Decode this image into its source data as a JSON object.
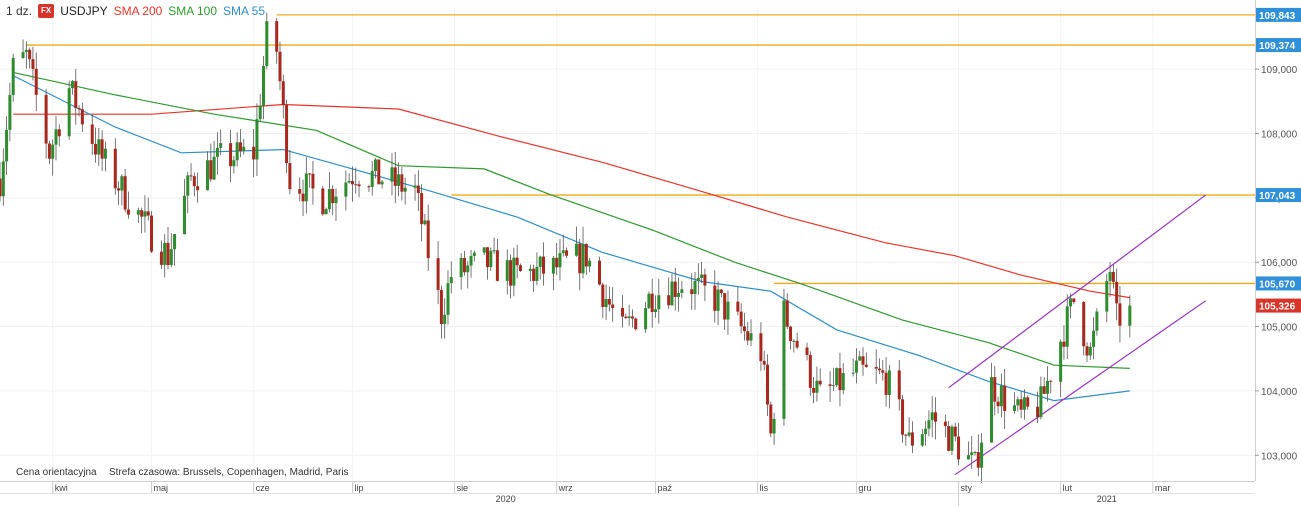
{
  "header": {
    "interval": "1 dz.",
    "badge": "FX",
    "symbol": "USDJPY",
    "indicators": [
      {
        "label": "SMA 200",
        "color": "#e8342c"
      },
      {
        "label": "SMA 100",
        "color": "#2f9a2f"
      },
      {
        "label": "SMA 55",
        "color": "#2f8fc8"
      }
    ]
  },
  "footer": {
    "price_note": "Cena orientacyjna",
    "timezone_note": "Strefa czasowa: Brussels, Copenhagen, Madrid, Paris"
  },
  "colors": {
    "up_candle": "#2e8b2e",
    "down_candle": "#a8281e",
    "level_line": "#f0a818",
    "channel": "#9a2fc8",
    "level_tag": "#2f8fd8",
    "last_price_tag": "#d8352a",
    "sma200": "#e8342c",
    "sma100": "#2f9a2f",
    "sma55": "#2f8fc8"
  },
  "chart_data": {
    "type": "candlestick",
    "symbol": "USDJPY",
    "ylim": [
      102.6,
      109.95
    ],
    "y_ticks": [
      "109,000",
      "108,000",
      "107,000",
      "106,000",
      "105,000",
      "104,000",
      "103,000"
    ],
    "x_month_labels": [
      "kwi",
      "maj",
      "cze",
      "lip",
      "sie",
      "wrz",
      "paź",
      "lis",
      "gru",
      "sty",
      "lut",
      "mar"
    ],
    "x_year_labels": [
      "2020",
      "2021"
    ],
    "level_tags": [
      "109,843",
      "109,374",
      "107,043",
      "105,670"
    ],
    "last_price_tag": "105,326",
    "levels": [
      {
        "label": "109,843",
        "value": 109.843,
        "from": "2020-06-08"
      },
      {
        "label": "109,374",
        "value": 109.374,
        "from": "2020-03-24"
      },
      {
        "label": "107,043",
        "value": 107.043,
        "from": "2020-07-31"
      },
      {
        "label": "105,670",
        "value": 105.67,
        "from": "2020-11-06"
      }
    ],
    "last_price": 105.326,
    "channel": {
      "upper": [
        [
          "2020-12-29",
          104.05
        ],
        [
          "2021-03-17",
          107.043
        ]
      ],
      "lower": [
        [
          "2020-12-31",
          102.7
        ],
        [
          "2021-03-17",
          105.4
        ]
      ]
    },
    "sma200": [
      [
        "2020-03-20",
        108.3
      ],
      [
        "2020-05-01",
        108.3
      ],
      [
        "2020-06-10",
        108.45
      ],
      [
        "2020-07-15",
        108.38
      ],
      [
        "2020-08-15",
        107.95
      ],
      [
        "2020-09-15",
        107.55
      ],
      [
        "2020-10-15",
        107.1
      ],
      [
        "2020-11-10",
        106.7
      ],
      [
        "2020-12-10",
        106.3
      ],
      [
        "2020-12-31",
        106.1
      ],
      [
        "2021-01-20",
        105.8
      ],
      [
        "2021-02-10",
        105.55
      ],
      [
        "2021-02-22",
        105.45
      ]
    ],
    "sma100": [
      [
        "2020-03-20",
        108.95
      ],
      [
        "2020-04-20",
        108.6
      ],
      [
        "2020-05-20",
        108.3
      ],
      [
        "2020-06-20",
        108.05
      ],
      [
        "2020-07-15",
        107.5
      ],
      [
        "2020-08-10",
        107.45
      ],
      [
        "2020-08-30",
        107.05
      ],
      [
        "2020-09-30",
        106.5
      ],
      [
        "2020-10-25",
        106.0
      ],
      [
        "2020-11-15",
        105.65
      ],
      [
        "2020-12-15",
        105.1
      ],
      [
        "2021-01-10",
        104.75
      ],
      [
        "2021-01-30",
        104.4
      ],
      [
        "2021-02-22",
        104.35
      ]
    ],
    "sma55": [
      [
        "2020-03-20",
        108.9
      ],
      [
        "2020-04-20",
        108.1
      ],
      [
        "2020-05-10",
        107.7
      ],
      [
        "2020-06-10",
        107.75
      ],
      [
        "2020-07-01",
        107.45
      ],
      [
        "2020-07-25",
        107.1
      ],
      [
        "2020-08-20",
        106.7
      ],
      [
        "2020-09-15",
        106.15
      ],
      [
        "2020-10-15",
        105.7
      ],
      [
        "2020-11-05",
        105.55
      ],
      [
        "2020-11-25",
        104.95
      ],
      [
        "2020-12-20",
        104.55
      ],
      [
        "2021-01-10",
        104.15
      ],
      [
        "2021-01-30",
        103.85
      ],
      [
        "2021-02-22",
        104.0
      ]
    ],
    "waypoints": [
      [
        "2020-03-16",
        107.3
      ],
      [
        "2020-03-20",
        109.0
      ],
      [
        "2020-03-24",
        109.2
      ],
      [
        "2020-03-31",
        107.7
      ],
      [
        "2020-04-06",
        108.7
      ],
      [
        "2020-04-16",
        107.6
      ],
      [
        "2020-04-30",
        106.5
      ],
      [
        "2020-05-06",
        106.1
      ],
      [
        "2020-05-13",
        107.3
      ],
      [
        "2020-05-22",
        107.6
      ],
      [
        "2020-06-01",
        107.7
      ],
      [
        "2020-06-05",
        109.5
      ],
      [
        "2020-06-08",
        109.3
      ],
      [
        "2020-06-12",
        107.3
      ],
      [
        "2020-06-22",
        107.0
      ],
      [
        "2020-07-02",
        107.4
      ],
      [
        "2020-07-10",
        107.3
      ],
      [
        "2020-07-20",
        107.1
      ],
      [
        "2020-07-28",
        105.2
      ],
      [
        "2020-07-31",
        105.8
      ],
      [
        "2020-08-10",
        106.0
      ],
      [
        "2020-08-20",
        105.8
      ],
      [
        "2020-08-31",
        105.9
      ],
      [
        "2020-09-10",
        106.1
      ],
      [
        "2020-09-21",
        104.9
      ],
      [
        "2020-09-30",
        105.5
      ],
      [
        "2020-10-10",
        105.7
      ],
      [
        "2020-10-20",
        105.4
      ],
      [
        "2020-11-02",
        104.6
      ],
      [
        "2020-11-05",
        103.3
      ],
      [
        "2020-11-09",
        105.2
      ],
      [
        "2020-11-20",
        103.9
      ],
      [
        "2020-12-01",
        104.3
      ],
      [
        "2020-12-10",
        104.2
      ],
      [
        "2020-12-17",
        103.2
      ],
      [
        "2020-12-24",
        103.6
      ],
      [
        "2020-12-31",
        103.2
      ],
      [
        "2021-01-06",
        102.8
      ],
      [
        "2021-01-11",
        104.1
      ],
      [
        "2021-01-20",
        103.6
      ],
      [
        "2021-01-26",
        103.8
      ],
      [
        "2021-02-01",
        104.8
      ],
      [
        "2021-02-05",
        105.4
      ],
      [
        "2021-02-10",
        104.6
      ],
      [
        "2021-02-16",
        105.9
      ],
      [
        "2021-02-18",
        105.1
      ],
      [
        "2021-02-22",
        105.326
      ]
    ]
  }
}
